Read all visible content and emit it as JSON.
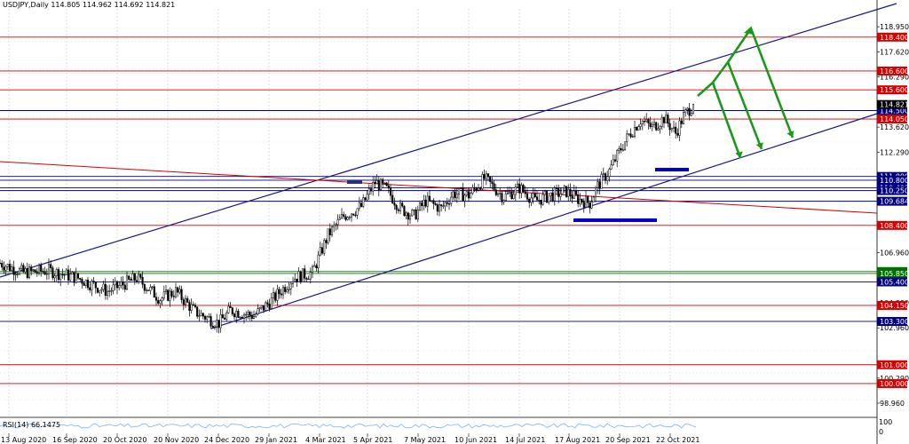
{
  "header": {
    "symbol": "USDJPY,Daily",
    "ohlc": "114.805 114.962 114.692 114.821",
    "title_text": "USDJPY,Daily  114.805 114.962 114.692 114.821"
  },
  "rsi": {
    "label": "RSI(14) 66.1475",
    "scale_top": "100",
    "scale_bottom": "0"
  },
  "chart_data": {
    "type": "candlestick",
    "title": "USDJPY,Daily",
    "ylim": [
      98.3,
      119.9
    ],
    "y_ticks": [
      "118.950",
      "117.620",
      "116.290",
      "113.620",
      "112.290",
      "106.960",
      "104.290",
      "102.960",
      "100.290",
      "98.960"
    ],
    "x_ticks": [
      "13 Aug 2020",
      "16 Sep 2020",
      "20 Oct 2020",
      "20 Nov 2020",
      "24 Dec 2020",
      "29 Jan 2021",
      "4 Mar 2021",
      "5 Apr 2021",
      "7 May 2021",
      "10 Jun 2021",
      "14 Jul 2021",
      "17 Aug 2021",
      "20 Sep 2021",
      "22 Oct 2021"
    ],
    "current_price": "114.821",
    "price_anchors": [
      [
        0,
        106.4
      ],
      [
        12,
        105.9
      ],
      [
        25,
        106.0
      ],
      [
        40,
        105.6
      ],
      [
        55,
        104.9
      ],
      [
        70,
        105.6
      ],
      [
        82,
        104.5
      ],
      [
        90,
        104.9
      ],
      [
        100,
        103.8
      ],
      [
        112,
        103.2
      ],
      [
        118,
        103.9
      ],
      [
        130,
        103.6
      ],
      [
        140,
        104.5
      ],
      [
        150,
        105.6
      ],
      [
        160,
        105.9
      ],
      [
        168,
        107.9
      ],
      [
        176,
        108.9
      ],
      [
        185,
        109.4
      ],
      [
        192,
        110.7
      ],
      [
        198,
        110.3
      ],
      [
        205,
        109.3
      ],
      [
        212,
        108.9
      ],
      [
        218,
        109.7
      ],
      [
        226,
        109.3
      ],
      [
        232,
        110.1
      ],
      [
        240,
        110.0
      ],
      [
        248,
        110.9
      ],
      [
        252,
        110.5
      ],
      [
        258,
        109.9
      ],
      [
        266,
        110.4
      ],
      [
        274,
        109.7
      ],
      [
        282,
        110.0
      ],
      [
        290,
        110.2
      ],
      [
        296,
        109.8
      ],
      [
        302,
        109.6
      ],
      [
        306,
        110.5
      ],
      [
        312,
        111.3
      ],
      [
        318,
        112.5
      ],
      [
        322,
        113.2
      ],
      [
        328,
        114.0
      ],
      [
        334,
        113.6
      ],
      [
        340,
        114.1
      ],
      [
        346,
        113.3
      ],
      [
        350,
        114.2
      ],
      [
        355,
        114.821
      ]
    ],
    "horizontal_levels": [
      {
        "value": 118.4,
        "label": "118.400",
        "color": "#d90000"
      },
      {
        "value": 116.6,
        "label": "116.600",
        "color": "#d90000"
      },
      {
        "value": 115.6,
        "label": "115.600",
        "color": "#d90000"
      },
      {
        "value": 114.5,
        "label": "114.500",
        "color": "#000080"
      },
      {
        "value": 114.05,
        "label": "114.050",
        "color": "#d90000"
      },
      {
        "value": 111.0,
        "label": "111.000",
        "color": "#000080"
      },
      {
        "value": 110.8,
        "label": "110.800",
        "color": "#000080"
      },
      {
        "value": 110.402,
        "label": "110.402",
        "color": "#000080"
      },
      {
        "value": 110.25,
        "label": "110.250",
        "color": "#000080"
      },
      {
        "value": 109.684,
        "label": "109.684",
        "color": "#000080"
      },
      {
        "value": 108.4,
        "label": "108.400",
        "color": "#d90000"
      },
      {
        "value": 105.95,
        "label": "105.950",
        "color": "#007000"
      },
      {
        "value": 105.85,
        "label": "105.850",
        "color": "#007000"
      },
      {
        "value": 105.4,
        "label": "105.400",
        "color": "#000080"
      },
      {
        "value": 104.15,
        "label": "104.150",
        "color": "#d90000"
      },
      {
        "value": 103.3,
        "label": "103.300",
        "color": "#000080"
      },
      {
        "value": 101.0,
        "label": "101.000",
        "color": "#d90000"
      },
      {
        "value": 100.0,
        "label": "100.000",
        "color": "#d90000"
      }
    ],
    "grid": true,
    "colors": {
      "channel": "#1a1a80",
      "trendline": "#d90000",
      "arrows": "#1a9a1a",
      "markers": "#0000d0",
      "candles": "#000000",
      "rsi_line": "#7fb5e6"
    }
  }
}
